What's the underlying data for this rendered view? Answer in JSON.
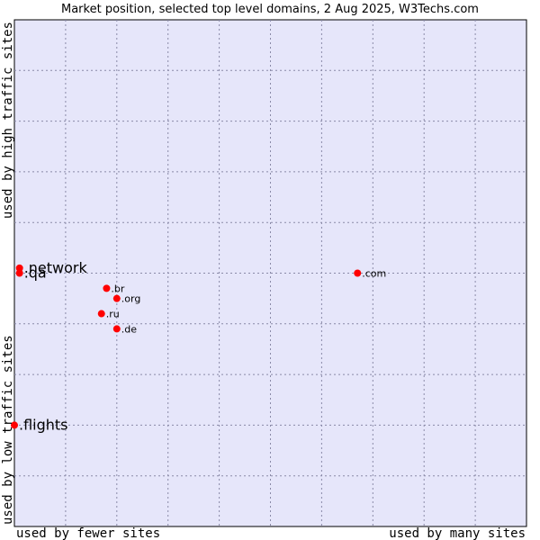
{
  "chart_data": {
    "type": "scatter",
    "title": "Market position, selected top level domains, 2 Aug 2025, W3Techs.com",
    "xlabel_left": "used by fewer sites",
    "xlabel_right": "used by many sites",
    "ylabel_top": "used by high traffic sites",
    "ylabel_bottom": "used by low traffic sites",
    "xlim": [
      0,
      10
    ],
    "ylim": [
      0,
      10
    ],
    "grid": true,
    "point_color": "#ff0000",
    "plot_background": "#e6e6fa",
    "points": [
      {
        "label": ".network",
        "x": 0.1,
        "y": 5.1,
        "size": "large"
      },
      {
        "label": ".qa",
        "x": 0.1,
        "y": 5.0,
        "size": "large"
      },
      {
        "label": ".flights",
        "x": 0.0,
        "y": 2.0,
        "size": "large"
      },
      {
        "label": ".com",
        "x": 6.7,
        "y": 5.0,
        "size": "small"
      },
      {
        "label": ".br",
        "x": 1.8,
        "y": 4.7,
        "size": "small"
      },
      {
        "label": ".org",
        "x": 2.0,
        "y": 4.5,
        "size": "small"
      },
      {
        "label": ".ru",
        "x": 1.7,
        "y": 4.2,
        "size": "small"
      },
      {
        "label": ".de",
        "x": 2.0,
        "y": 3.9,
        "size": "small"
      }
    ]
  }
}
